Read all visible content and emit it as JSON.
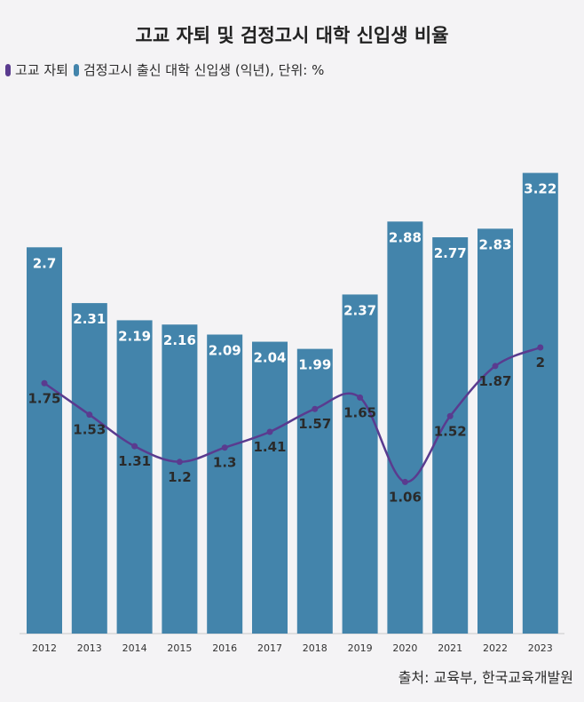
{
  "chart_data": {
    "type": "bar",
    "title": "고교 자퇴 및 검정고시 대학 신입생 비율",
    "legend_text": {
      "line": "고교 자퇴",
      "bar": "검정고시 출신 대학 신입생 (익년), 단위: %"
    },
    "categories": [
      "2012",
      "2013",
      "2014",
      "2015",
      "2016",
      "2017",
      "2018",
      "2019",
      "2020",
      "2021",
      "2022",
      "2023"
    ],
    "series": [
      {
        "name": "검정고시 출신 대학 신입생 (익년)",
        "kind": "bar",
        "color": "#4384ab",
        "values": [
          2.7,
          2.31,
          2.19,
          2.16,
          2.09,
          2.04,
          1.99,
          2.37,
          2.88,
          2.77,
          2.83,
          3.22
        ],
        "labels": [
          "2.7",
          "2.31",
          "2.19",
          "2.16",
          "2.09",
          "2.04",
          "1.99",
          "2.37",
          "2.88",
          "2.77",
          "2.83",
          "3.22"
        ]
      },
      {
        "name": "고교 자퇴",
        "kind": "line",
        "color": "#5a3b8f",
        "values": [
          1.75,
          1.53,
          1.31,
          1.2,
          1.3,
          1.41,
          1.57,
          1.65,
          1.06,
          1.52,
          1.87,
          2.0
        ],
        "labels": [
          "1.75",
          "1.53",
          "1.31",
          "1.2",
          "1.3",
          "1.41",
          "1.57",
          "1.65",
          "1.06",
          "1.52",
          "1.87",
          "2"
        ]
      }
    ],
    "ylim": [
      0,
      3.5
    ],
    "source": "출처: 교육부, 한국교육개발원"
  }
}
